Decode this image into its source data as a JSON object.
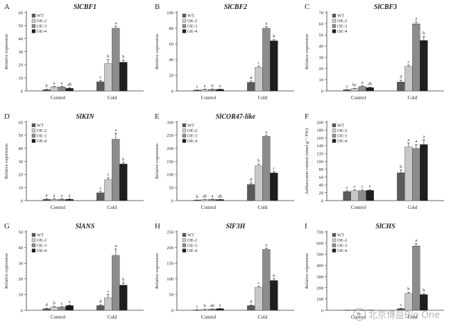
{
  "colors": {
    "WT": "#5a5a5a",
    "OE-2": "#c8c8c8",
    "OE-3": "#8c8c8c",
    "OE-4": "#1e1e1e",
    "axis": "#333333"
  },
  "legend": [
    "WT",
    "OE-2",
    "OE-3",
    "OE-4"
  ],
  "watermark": "北京博益Bio One",
  "chart_data": [
    {
      "panel": "A",
      "title": "SlCBF1",
      "type": "bar",
      "ylabel": "Relative expression",
      "ylim": [
        0,
        60
      ],
      "yticks": [
        0,
        10,
        20,
        30,
        40,
        50,
        60
      ],
      "categories": [
        "Control",
        "Cold"
      ],
      "series": [
        {
          "name": "WT",
          "values": [
            1,
            7
          ],
          "errors": [
            0.3,
            1.0
          ],
          "letters": [
            "b",
            "c"
          ]
        },
        {
          "name": "OE-2",
          "values": [
            3,
            21
          ],
          "errors": [
            0.5,
            3.0
          ],
          "letters": [
            "a",
            "b"
          ]
        },
        {
          "name": "OE-3",
          "values": [
            3,
            48
          ],
          "errors": [
            0.5,
            1.5
          ],
          "letters": [
            "a",
            "a"
          ]
        },
        {
          "name": "OE-4",
          "values": [
            2,
            22
          ],
          "errors": [
            0.4,
            1.5
          ],
          "letters": [
            "ab",
            "b"
          ]
        }
      ]
    },
    {
      "panel": "B",
      "title": "SlCBF2",
      "type": "bar",
      "ylabel": "Relative expression",
      "ylim": [
        0,
        100
      ],
      "yticks": [
        0,
        20,
        40,
        60,
        80,
        100
      ],
      "categories": [
        "Control",
        "Cold"
      ],
      "series": [
        {
          "name": "WT",
          "values": [
            1,
            11
          ],
          "errors": [
            0.3,
            1.5
          ],
          "letters": [
            "c",
            "d"
          ]
        },
        {
          "name": "OE-2",
          "values": [
            2,
            30
          ],
          "errors": [
            0.4,
            1.5
          ],
          "letters": [
            "a",
            "c"
          ]
        },
        {
          "name": "OE-3",
          "values": [
            2,
            80
          ],
          "errors": [
            0.4,
            2.0
          ],
          "letters": [
            "b",
            "a"
          ]
        },
        {
          "name": "OE-4",
          "values": [
            2,
            64
          ],
          "errors": [
            0.4,
            1.5
          ],
          "letters": [
            "a",
            "b"
          ]
        }
      ]
    },
    {
      "panel": "C",
      "title": "SlCBF3",
      "type": "bar",
      "ylabel": "Relative expression",
      "ylim": [
        0,
        70
      ],
      "yticks": [
        0,
        10,
        20,
        30,
        40,
        50,
        60,
        70
      ],
      "categories": [
        "Control",
        "Cold"
      ],
      "series": [
        {
          "name": "WT",
          "values": [
            1,
            8
          ],
          "errors": [
            0.3,
            1.5
          ],
          "letters": [
            "c",
            "d"
          ]
        },
        {
          "name": "OE-2",
          "values": [
            2,
            22
          ],
          "errors": [
            0.4,
            1.0
          ],
          "letters": [
            "bc",
            "c"
          ]
        },
        {
          "name": "OE-3",
          "values": [
            4,
            60
          ],
          "errors": [
            0.5,
            1.5
          ],
          "letters": [
            "a",
            "a"
          ]
        },
        {
          "name": "OE-4",
          "values": [
            3,
            45
          ],
          "errors": [
            0.4,
            3.5
          ],
          "letters": [
            "ab",
            "b"
          ]
        }
      ]
    },
    {
      "panel": "D",
      "title": "SlKIN",
      "type": "bar",
      "ylabel": "Relative expression",
      "ylim": [
        0,
        60
      ],
      "yticks": [
        0,
        10,
        20,
        30,
        40,
        50,
        60
      ],
      "categories": [
        "Control",
        "Cold"
      ],
      "series": [
        {
          "name": "WT",
          "values": [
            1,
            6
          ],
          "errors": [
            0.5,
            1.0
          ],
          "letters": [
            "a",
            "c"
          ]
        },
        {
          "name": "OE-2",
          "values": [
            1,
            16
          ],
          "errors": [
            0.4,
            1.5
          ],
          "letters": [
            "a",
            "c"
          ]
        },
        {
          "name": "OE-3",
          "values": [
            1,
            47
          ],
          "errors": [
            0.4,
            4.5
          ],
          "letters": [
            "a",
            "a"
          ]
        },
        {
          "name": "OE-4",
          "values": [
            1,
            28
          ],
          "errors": [
            0.4,
            1.0
          ],
          "letters": [
            "a",
            "b"
          ]
        }
      ]
    },
    {
      "panel": "E",
      "title": "SlCOR47-like",
      "type": "bar",
      "ylabel": "Relative expression",
      "ylim": [
        0,
        300
      ],
      "yticks": [
        0,
        50,
        100,
        150,
        200,
        250,
        300
      ],
      "categories": [
        "Control",
        "Cold"
      ],
      "series": [
        {
          "name": "WT",
          "values": [
            2,
            62
          ],
          "errors": [
            0.5,
            6.0
          ],
          "letters": [
            "b",
            "d"
          ]
        },
        {
          "name": "OE-2",
          "values": [
            4,
            133
          ],
          "errors": [
            0.6,
            6.0
          ],
          "letters": [
            "ab",
            "b"
          ]
        },
        {
          "name": "OE-3",
          "values": [
            5,
            246
          ],
          "errors": [
            0.6,
            4.0
          ],
          "letters": [
            "a",
            "a"
          ]
        },
        {
          "name": "OE-4",
          "values": [
            4,
            106
          ],
          "errors": [
            0.6,
            4.0
          ],
          "letters": [
            "ab",
            "c"
          ]
        }
      ]
    },
    {
      "panel": "F",
      "title": "",
      "type": "bar",
      "ylabel": "Anthocyanin content (nmol g⁻¹ FW)",
      "ylim": [
        0,
        200
      ],
      "yticks": [
        0,
        20,
        40,
        60,
        80,
        100,
        120,
        140,
        160,
        180,
        200
      ],
      "categories": [
        "Control",
        "Cold"
      ],
      "series": [
        {
          "name": "WT",
          "values": [
            23,
            71
          ],
          "errors": [
            2,
            7
          ],
          "letters": [
            "c",
            "b"
          ]
        },
        {
          "name": "OE-2",
          "values": [
            25,
            137
          ],
          "errors": [
            2,
            10
          ],
          "letters": [
            "c",
            "a"
          ]
        },
        {
          "name": "OE-3",
          "values": [
            25,
            133
          ],
          "errors": [
            2,
            10
          ],
          "letters": [
            "c",
            "a"
          ]
        },
        {
          "name": "OE-4",
          "values": [
            26,
            143
          ],
          "errors": [
            2,
            12
          ],
          "letters": [
            "c",
            "a"
          ]
        }
      ]
    },
    {
      "panel": "G",
      "title": "SlANS",
      "type": "bar",
      "ylabel": "Relative expression",
      "ylim": [
        0,
        50
      ],
      "yticks": [
        0,
        10,
        20,
        30,
        40,
        50
      ],
      "categories": [
        "Control",
        "Cold"
      ],
      "series": [
        {
          "name": "WT",
          "values": [
            1,
            3
          ],
          "errors": [
            0.3,
            0.5
          ],
          "letters": [
            "d",
            "d"
          ]
        },
        {
          "name": "OE-2",
          "values": [
            2,
            8
          ],
          "errors": [
            0.4,
            2.0
          ],
          "letters": [
            "b",
            "c"
          ]
        },
        {
          "name": "OE-3",
          "values": [
            2,
            35
          ],
          "errors": [
            0.3,
            4.0
          ],
          "letters": [
            "c",
            "a"
          ]
        },
        {
          "name": "OE-4",
          "values": [
            3,
            16
          ],
          "errors": [
            0.4,
            1.5
          ],
          "letters": [
            "a",
            "b"
          ]
        }
      ]
    },
    {
      "panel": "H",
      "title": "SlF3H",
      "type": "bar",
      "ylabel": "Relative expression",
      "ylim": [
        0,
        250
      ],
      "yticks": [
        0,
        50,
        100,
        150,
        200,
        250
      ],
      "categories": [
        "Control",
        "Cold"
      ],
      "series": [
        {
          "name": "WT",
          "values": [
            1,
            15
          ],
          "errors": [
            0.5,
            2.0
          ],
          "letters": [
            "c",
            "d"
          ]
        },
        {
          "name": "OE-2",
          "values": [
            3,
            73
          ],
          "errors": [
            0.6,
            3.0
          ],
          "letters": [
            "b",
            "c"
          ]
        },
        {
          "name": "OE-3",
          "values": [
            4,
            194
          ],
          "errors": [
            0.6,
            4.0
          ],
          "letters": [
            "ab",
            "a"
          ]
        },
        {
          "name": "OE-4",
          "values": [
            5,
            95
          ],
          "errors": [
            0.6,
            5.0
          ],
          "letters": [
            "a",
            "b"
          ]
        }
      ]
    },
    {
      "panel": "I",
      "title": "SlCHS",
      "type": "bar",
      "ylabel": "Relative expression",
      "ylim": [
        0,
        700
      ],
      "yticks": [
        0,
        100,
        200,
        300,
        400,
        500,
        600,
        700
      ],
      "categories": [
        "Control",
        "Cold"
      ],
      "series": [
        {
          "name": "WT",
          "values": [
            1,
            15
          ],
          "errors": [
            0.5,
            3
          ],
          "letters": [
            "",
            "c"
          ]
        },
        {
          "name": "OE-2",
          "values": [
            1,
            150
          ],
          "errors": [
            0.5,
            10
          ],
          "letters": [
            "",
            "b"
          ]
        },
        {
          "name": "OE-3",
          "values": [
            1,
            575
          ],
          "errors": [
            0.5,
            20
          ],
          "letters": [
            "",
            "a"
          ]
        },
        {
          "name": "OE-4",
          "values": [
            1,
            140
          ],
          "errors": [
            0.5,
            10
          ],
          "letters": [
            "",
            "b"
          ]
        }
      ]
    }
  ]
}
